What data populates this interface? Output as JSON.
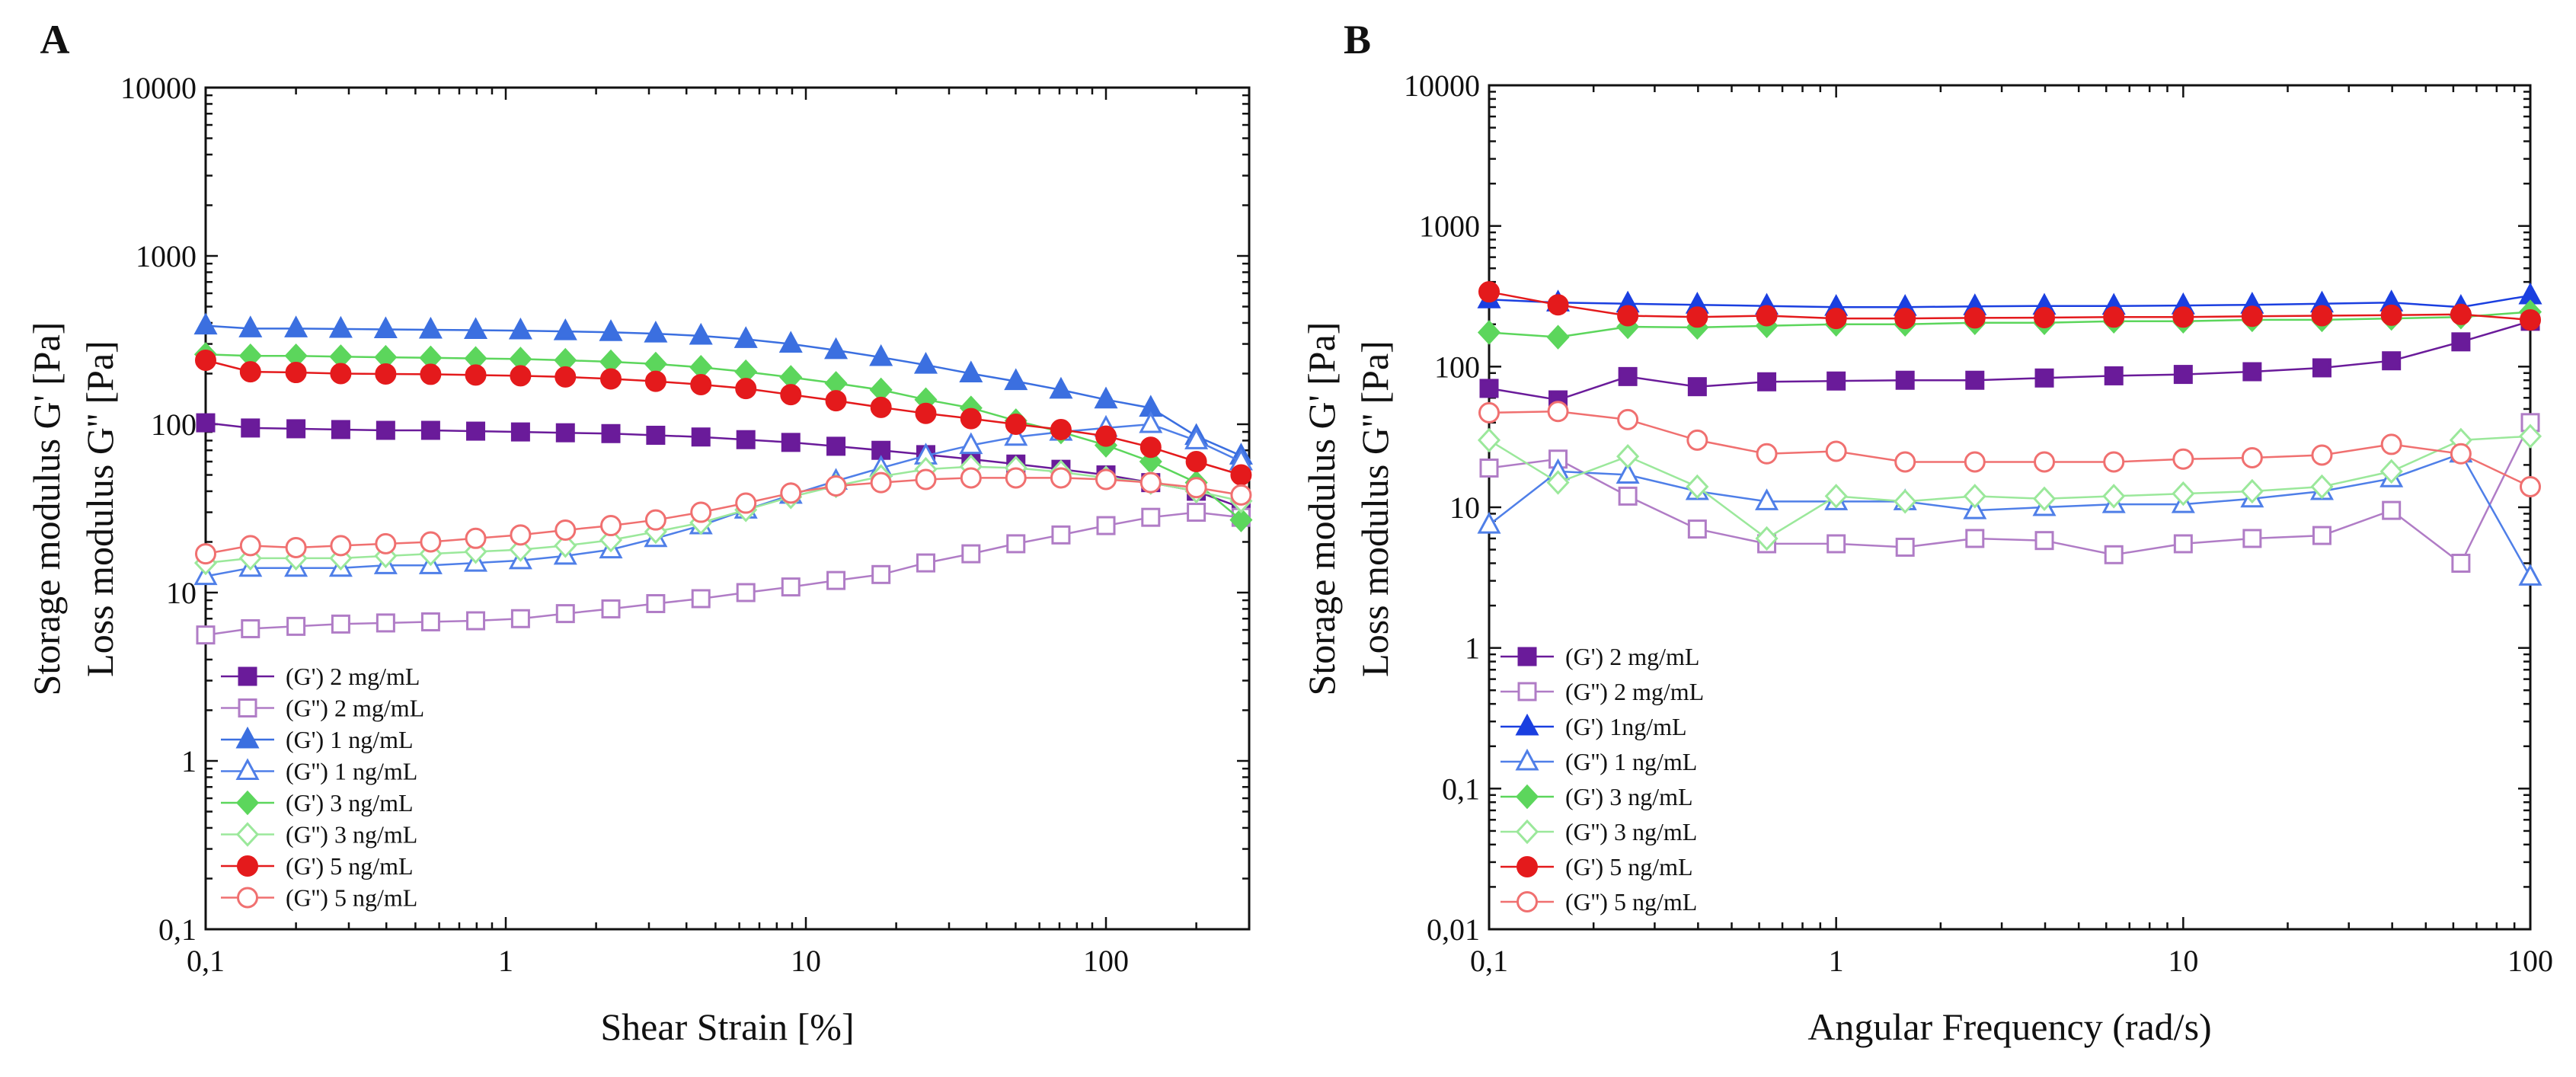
{
  "chart_data": [
    {
      "type": "line",
      "panel_label": "A",
      "xscale": "log",
      "yscale": "log",
      "xlabel": "Shear Strain [%]",
      "ylabel_lines": [
        "Storage modulus G' [Pa]",
        "Loss modulus G'' [Pa]"
      ],
      "xlim": [
        0.1,
        300
      ],
      "ylim": [
        0.1,
        10000
      ],
      "xticks": [
        0.1,
        1,
        10,
        100
      ],
      "xtick_labels": [
        "0,1",
        "1",
        "10",
        "100"
      ],
      "yticks": [
        0.1,
        1,
        10,
        100,
        1000,
        10000
      ],
      "ytick_labels": [
        "0,1",
        "1",
        "10",
        "100",
        "1000",
        "10000"
      ],
      "legend_position": "bottom-left",
      "x": [
        0.1,
        0.141,
        0.2,
        0.282,
        0.398,
        0.562,
        0.794,
        1.12,
        1.58,
        2.24,
        3.16,
        4.47,
        6.31,
        8.91,
        12.6,
        17.8,
        25.1,
        35.5,
        50.1,
        70.8,
        100,
        141,
        200,
        282
      ],
      "series": [
        {
          "name": "(G') 2 mg/mL",
          "color": "#6a1b9a",
          "marker": "square",
          "filled": true,
          "values": [
            102,
            95,
            94,
            93,
            92,
            92,
            91,
            90,
            89,
            88,
            86,
            84,
            81,
            78,
            74,
            70,
            66,
            62,
            58,
            54,
            50,
            45,
            40,
            32
          ]
        },
        {
          "name": "(G'') 2 mg/mL",
          "color": "#b07cc6",
          "marker": "square",
          "filled": false,
          "values": [
            5.6,
            6.1,
            6.3,
            6.5,
            6.6,
            6.7,
            6.8,
            7.0,
            7.5,
            8.0,
            8.6,
            9.2,
            10,
            10.8,
            11.8,
            12.8,
            15,
            17,
            19.5,
            22,
            25,
            28,
            30,
            28
          ]
        },
        {
          "name": "(G') 1 ng/mL",
          "color": "#3b6fe0",
          "marker": "triangle",
          "filled": true,
          "values": [
            385,
            370,
            370,
            368,
            366,
            364,
            362,
            360,
            356,
            352,
            345,
            335,
            320,
            300,
            275,
            250,
            225,
            200,
            180,
            160,
            140,
            125,
            85,
            65
          ]
        },
        {
          "name": "(G'') 1 ng/mL",
          "color": "#4f7fe8",
          "marker": "triangle",
          "filled": false,
          "values": [
            12.5,
            14,
            14,
            14,
            14.5,
            14.5,
            15,
            15.5,
            16.5,
            18,
            21,
            25,
            31,
            38,
            46,
            55,
            65,
            75,
            84,
            90,
            95,
            100,
            80,
            60
          ]
        },
        {
          "name": "(G') 3 ng/mL",
          "color": "#5cd65c",
          "marker": "diamond",
          "filled": true,
          "values": [
            260,
            255,
            255,
            252,
            250,
            248,
            246,
            244,
            240,
            235,
            228,
            218,
            205,
            190,
            175,
            160,
            140,
            125,
            105,
            90,
            75,
            60,
            45,
            27
          ]
        },
        {
          "name": "(G'') 3 ng/mL",
          "color": "#9be89b",
          "marker": "diamond",
          "filled": false,
          "values": [
            15,
            16,
            16,
            16,
            16.5,
            17,
            17.5,
            18,
            19,
            20.5,
            23,
            26,
            31,
            37,
            43,
            49,
            54,
            56,
            55,
            52,
            48,
            45,
            40,
            35
          ]
        },
        {
          "name": "(G') 5 ng/mL",
          "color": "#e41a1c",
          "marker": "circle",
          "filled": true,
          "values": [
            240,
            205,
            203,
            200,
            199,
            198,
            196,
            194,
            191,
            186,
            180,
            172,
            163,
            150,
            138,
            126,
            116,
            108,
            100,
            93,
            85,
            73,
            60,
            50
          ]
        },
        {
          "name": "(G'') 5 ng/mL",
          "color": "#f07070",
          "marker": "circle",
          "filled": false,
          "values": [
            17,
            19,
            18.5,
            19,
            19.5,
            20,
            21,
            22,
            23.5,
            25,
            27,
            30,
            34,
            39,
            43,
            45,
            47,
            48,
            48,
            48,
            47,
            45,
            42,
            38
          ]
        }
      ]
    },
    {
      "type": "line",
      "panel_label": "B",
      "xscale": "log",
      "yscale": "log",
      "xlabel": "Angular Frequency (rad/s)",
      "ylabel_lines": [
        "Storage modulus G' [Pa]",
        "Loss modulus G'' [Pa]"
      ],
      "xlim": [
        0.1,
        100
      ],
      "ylim": [
        0.01,
        10000
      ],
      "xticks": [
        0.1,
        1,
        10,
        100
      ],
      "xtick_labels": [
        "0,1",
        "1",
        "10",
        "100"
      ],
      "yticks": [
        0.01,
        0.1,
        1,
        10,
        100,
        1000,
        10000
      ],
      "ytick_labels": [
        "0,01",
        "0,1",
        "1",
        "10",
        "100",
        "1000",
        "10000"
      ],
      "legend_position": "bottom-left",
      "x": [
        0.1,
        0.158,
        0.251,
        0.398,
        0.631,
        1,
        1.58,
        2.51,
        3.98,
        6.31,
        10,
        15.8,
        25.1,
        39.8,
        63.1,
        100
      ],
      "series": [
        {
          "name": "(G') 2 mg/mL",
          "color": "#6a1b9a",
          "marker": "square",
          "filled": true,
          "values": [
            70,
            58,
            85,
            72,
            78,
            79,
            80,
            80,
            83,
            86,
            88,
            92,
            98,
            110,
            150,
            210
          ]
        },
        {
          "name": "(G'') 2 mg/mL",
          "color": "#b07cc6",
          "marker": "square",
          "filled": false,
          "values": [
            19,
            22,
            12,
            7,
            5.5,
            5.5,
            5.2,
            6,
            5.8,
            4.6,
            5.5,
            6,
            6.3,
            9.5,
            4,
            40
          ]
        },
        {
          "name": "(G') 1ng/mL",
          "color": "#1a3fe0",
          "marker": "triangle",
          "filled": true,
          "values": [
            300,
            285,
            280,
            275,
            270,
            265,
            265,
            268,
            270,
            270,
            272,
            275,
            280,
            285,
            265,
            320
          ]
        },
        {
          "name": "(G'') 1 ng/mL",
          "color": "#4f7fe8",
          "marker": "triangle",
          "filled": false,
          "values": [
            7.5,
            18,
            17,
            13,
            11,
            11,
            11,
            9.5,
            10,
            10.5,
            10.5,
            11.5,
            13,
            16,
            24,
            3.2
          ]
        },
        {
          "name": "(G') 3 ng/mL",
          "color": "#5cd65c",
          "marker": "diamond",
          "filled": true,
          "values": [
            175,
            162,
            192,
            190,
            195,
            200,
            200,
            205,
            205,
            210,
            210,
            215,
            215,
            220,
            225,
            245
          ]
        },
        {
          "name": "(G'') 3 ng/mL",
          "color": "#9be89b",
          "marker": "diamond",
          "filled": false,
          "values": [
            30,
            15,
            23,
            14,
            6,
            12,
            11,
            12,
            11.5,
            12,
            12.5,
            13,
            14,
            18,
            30,
            32
          ]
        },
        {
          "name": "(G') 5 ng/mL",
          "color": "#e41a1c",
          "marker": "circle",
          "filled": true,
          "values": [
            340,
            275,
            230,
            225,
            230,
            220,
            220,
            222,
            223,
            225,
            225,
            228,
            230,
            232,
            235,
            215
          ]
        },
        {
          "name": "(G'') 5 ng/mL",
          "color": "#f07070",
          "marker": "circle",
          "filled": false,
          "values": [
            47,
            48,
            42,
            30,
            24,
            25,
            21,
            21,
            21,
            21,
            22,
            22.5,
            23.5,
            28,
            24,
            14
          ]
        }
      ]
    }
  ]
}
